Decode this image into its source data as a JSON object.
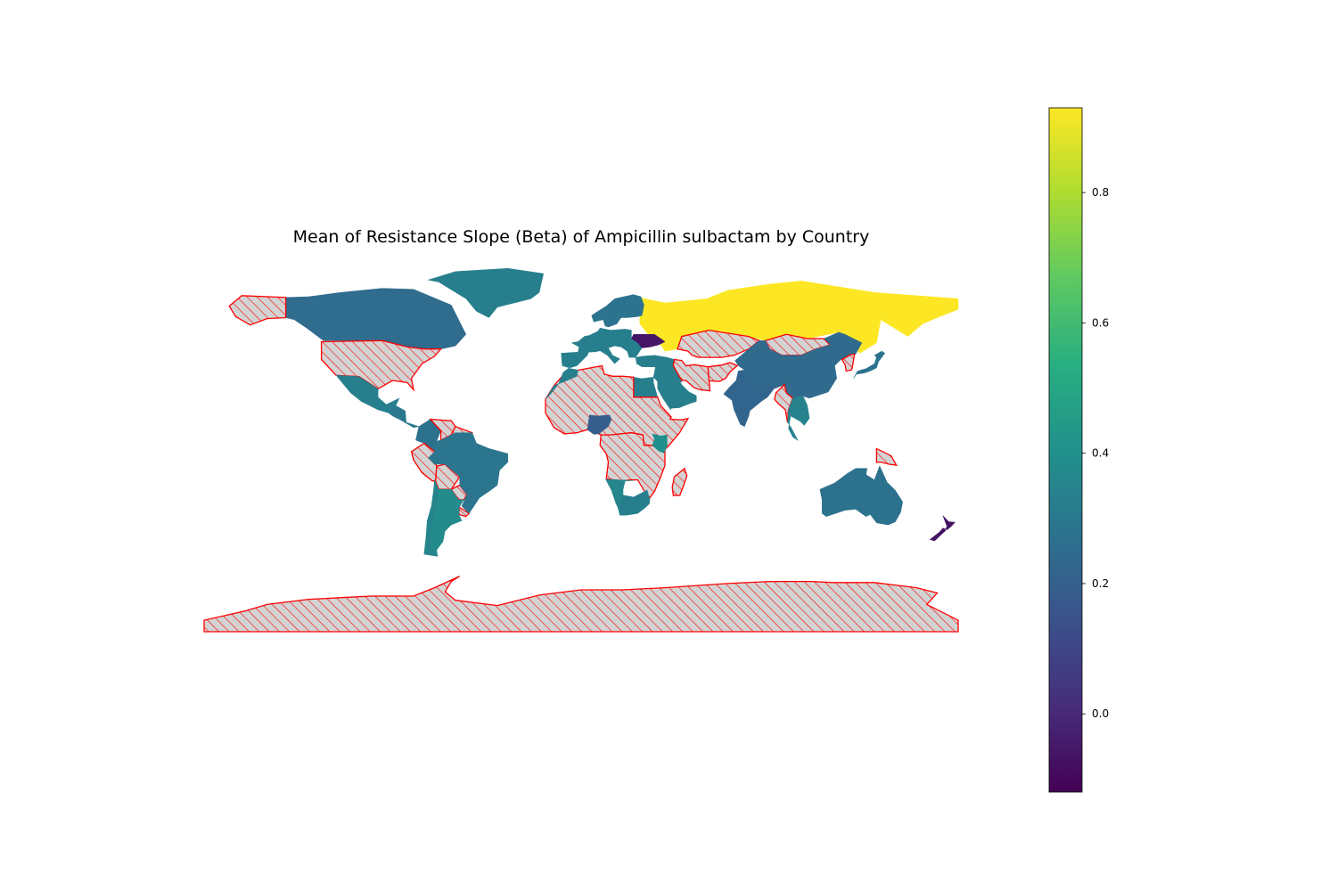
{
  "chart_data": {
    "type": "choropleth",
    "title": "Mean of Resistance Slope (Beta) of Ampicillin sulbactam by Country",
    "colormap": "viridis",
    "colorbar": {
      "min": -0.12,
      "max": 0.93,
      "ticks": [
        -0.0,
        0.2,
        0.4,
        0.6,
        0.8
      ],
      "tick_labels": [
        "0.0",
        "0.2",
        "0.4",
        "0.6",
        "0.8"
      ]
    },
    "missing_data_style": {
      "fill": "#d3d3d3",
      "edge_color": "#ff0000",
      "hatch": "///"
    },
    "regions": [
      {
        "name": "Canada",
        "value": 0.25
      },
      {
        "name": "Greenland",
        "value": 0.33
      },
      {
        "name": "United States",
        "value": null
      },
      {
        "name": "Alaska",
        "value": null
      },
      {
        "name": "Mexico",
        "value": 0.33
      },
      {
        "name": "Central America",
        "value": 0.3
      },
      {
        "name": "Colombia",
        "value": 0.27
      },
      {
        "name": "Venezuela",
        "value": null
      },
      {
        "name": "Guyana",
        "value": null
      },
      {
        "name": "Peru",
        "value": null
      },
      {
        "name": "Bolivia",
        "value": null
      },
      {
        "name": "Paraguay",
        "value": null
      },
      {
        "name": "Uruguay",
        "value": null
      },
      {
        "name": "Brazil",
        "value": 0.29
      },
      {
        "name": "Argentina",
        "value": 0.38
      },
      {
        "name": "Chile",
        "value": 0.35
      },
      {
        "name": "Russia",
        "value": 0.93
      },
      {
        "name": "Scandinavia",
        "value": 0.28
      },
      {
        "name": "Western Europe",
        "value": 0.33
      },
      {
        "name": "Ukraine",
        "value": -0.06
      },
      {
        "name": "Turkey",
        "value": 0.33
      },
      {
        "name": "Kazakhstan",
        "value": null
      },
      {
        "name": "Mongolia",
        "value": null
      },
      {
        "name": "China",
        "value": 0.24
      },
      {
        "name": "India",
        "value": 0.22
      },
      {
        "name": "Middle East",
        "value": 0.33
      },
      {
        "name": "Iran",
        "value": null
      },
      {
        "name": "Afghanistan",
        "value": null
      },
      {
        "name": "Myanmar",
        "value": null
      },
      {
        "name": "Southeast Asia",
        "value": 0.34
      },
      {
        "name": "Japan",
        "value": 0.28
      },
      {
        "name": "Korea",
        "value": null
      },
      {
        "name": "Egypt",
        "value": 0.33
      },
      {
        "name": "Saudi Arabia",
        "value": 0.33
      },
      {
        "name": "North Africa",
        "value": null
      },
      {
        "name": "Morocco",
        "value": 0.33
      },
      {
        "name": "Nigeria",
        "value": 0.19
      },
      {
        "name": "Central Africa",
        "value": null
      },
      {
        "name": "Kenya",
        "value": 0.4
      },
      {
        "name": "Namibia",
        "value": 0.36
      },
      {
        "name": "South Africa",
        "value": 0.33
      },
      {
        "name": "Madagascar",
        "value": null
      },
      {
        "name": "Australia",
        "value": 0.27
      },
      {
        "name": "Papua New Guinea",
        "value": null
      },
      {
        "name": "New Zealand",
        "value": -0.07
      },
      {
        "name": "Antarctica",
        "value": null
      }
    ]
  }
}
